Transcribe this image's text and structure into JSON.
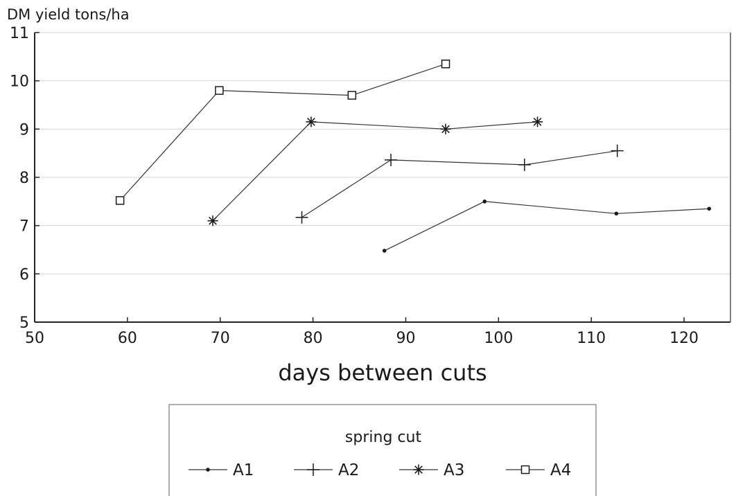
{
  "chart_data": {
    "type": "line",
    "title": "",
    "ylabel": "DM yield tons/ha",
    "xlabel": "days between cuts",
    "xlim": [
      50,
      125
    ],
    "ylim": [
      5,
      11
    ],
    "xticks": [
      50,
      60,
      70,
      80,
      90,
      100,
      110,
      120
    ],
    "yticks": [
      5,
      6,
      7,
      8,
      9,
      10,
      11
    ],
    "grid": "horizontal",
    "legend": {
      "title": "spring cut",
      "placement": "bottom-center"
    },
    "series": [
      {
        "name": "A1",
        "marker": "dot",
        "x": [
          87.7,
          98.5,
          112.7,
          122.7
        ],
        "y": [
          6.48,
          7.5,
          7.25,
          7.35
        ]
      },
      {
        "name": "A2",
        "marker": "plus",
        "x": [
          78.8,
          88.4,
          102.8,
          112.8
        ],
        "y": [
          7.17,
          8.36,
          8.26,
          8.55
        ]
      },
      {
        "name": "A3",
        "marker": "asterisk",
        "x": [
          69.2,
          79.8,
          94.3,
          104.2
        ],
        "y": [
          7.1,
          9.15,
          9.0,
          9.15
        ]
      },
      {
        "name": "A4",
        "marker": "square",
        "x": [
          59.2,
          69.9,
          84.2,
          94.3
        ],
        "y": [
          7.52,
          9.8,
          9.7,
          10.35
        ]
      }
    ]
  }
}
